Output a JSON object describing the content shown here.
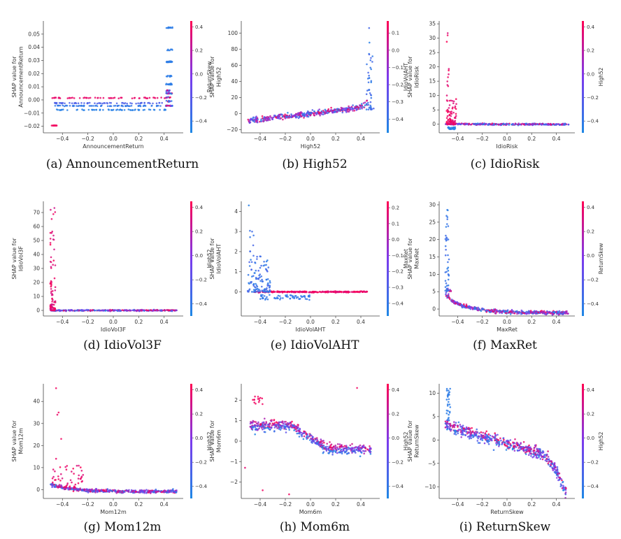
{
  "colors": {
    "low": "#1e88e5",
    "mid": "#7c3aed",
    "high": "#ff0052"
  },
  "chart_data": [
    {
      "type": "scatter",
      "caption": "(a) AnnouncementReturn",
      "xlabel": "AnnouncementReturn",
      "ylabel": "SHAP value for\nAnnouncementReturn",
      "xlim": [
        -0.55,
        0.55
      ],
      "ylim": [
        -0.025,
        0.06
      ],
      "xticks": [
        -0.4,
        -0.2,
        0.0,
        0.2,
        0.4
      ],
      "xticklabels": [
        "−0.4",
        "−0.2",
        "0.0",
        "0.2",
        "0.4"
      ],
      "yticks": [
        -0.02,
        -0.01,
        0.0,
        0.01,
        0.02,
        0.03,
        0.04,
        0.05
      ],
      "yticklabels": [
        "−0.02",
        "−0.01",
        "0.00",
        "0.01",
        "0.02",
        "0.03",
        "0.04",
        "0.05"
      ],
      "colorbar": {
        "label": "ReturnSkew",
        "ticks": [
          0.4,
          0.2,
          0.0,
          -0.2,
          -0.4
        ],
        "ticklabels": [
          "0.4",
          "0.2",
          "0.0",
          "−0.2",
          "−0.4"
        ],
        "range": [
          -0.5,
          0.45
        ]
      },
      "pattern": "step",
      "seed": 11
    },
    {
      "type": "scatter",
      "caption": "(b) High52",
      "xlabel": "High52",
      "ylabel": "SHAP value for\nHigh52",
      "xlim": [
        -0.55,
        0.55
      ],
      "ylim": [
        -24,
        115
      ],
      "xticks": [
        -0.4,
        -0.2,
        0.0,
        0.2,
        0.4
      ],
      "xticklabels": [
        "−0.4",
        "−0.2",
        "0.0",
        "0.2",
        "0.4"
      ],
      "yticks": [
        -20,
        0,
        20,
        40,
        60,
        80,
        100
      ],
      "yticklabels": [
        "−20",
        "0",
        "20",
        "40",
        "60",
        "80",
        "100"
      ],
      "colorbar": {
        "label": "IdioVolAHT",
        "ticks": [
          0.1,
          0.0,
          -0.1,
          -0.2,
          -0.3,
          -0.4
        ],
        "ticklabels": [
          "0.1",
          "0.0",
          "−0.1",
          "−0.2",
          "−0.3",
          "−0.4"
        ],
        "range": [
          -0.48,
          0.17
        ]
      },
      "pattern": "high52",
      "seed": 23
    },
    {
      "type": "scatter",
      "caption": "(c) IdioRisk",
      "xlabel": "IdioRisk",
      "ylabel": "SHAP value for\nIdioRisk",
      "xlim": [
        -0.55,
        0.55
      ],
      "ylim": [
        -3,
        36
      ],
      "xticks": [
        -0.4,
        -0.2,
        0.0,
        0.2,
        0.4
      ],
      "xticklabels": [
        "−0.4",
        "−0.2",
        "0.0",
        "0.2",
        "0.4"
      ],
      "yticks": [
        0,
        5,
        10,
        15,
        20,
        25,
        30,
        35
      ],
      "yticklabels": [
        "0",
        "5",
        "10",
        "15",
        "20",
        "25",
        "30",
        "35"
      ],
      "colorbar": {
        "label": "High52",
        "ticks": [
          0.4,
          0.2,
          0.0,
          -0.2,
          -0.4
        ],
        "ticklabels": [
          "0.4",
          "0.2",
          "0.0",
          "−0.2",
          "−0.4"
        ],
        "range": [
          -0.5,
          0.45
        ]
      },
      "pattern": "spike",
      "seed": 37
    },
    {
      "type": "scatter",
      "caption": "(d) IdioVol3F",
      "xlabel": "IdioVol3F",
      "ylabel": "SHAP value for\nIdioVol3F",
      "xlim": [
        -0.55,
        0.55
      ],
      "ylim": [
        -4,
        78
      ],
      "xticks": [
        -0.4,
        -0.2,
        0.0,
        0.2,
        0.4
      ],
      "xticklabels": [
        "−0.4",
        "−0.2",
        "0.0",
        "0.2",
        "0.4"
      ],
      "yticks": [
        0,
        10,
        20,
        30,
        40,
        50,
        60,
        70
      ],
      "yticklabels": [
        "0",
        "10",
        "20",
        "30",
        "40",
        "50",
        "60",
        "70"
      ],
      "colorbar": {
        "label": "High52",
        "ticks": [
          0.4,
          0.2,
          0.0,
          -0.2,
          -0.4
        ],
        "ticklabels": [
          "0.4",
          "0.2",
          "0.0",
          "−0.2",
          "−0.4"
        ],
        "range": [
          -0.5,
          0.45
        ]
      },
      "pattern": "spike2",
      "seed": 41
    },
    {
      "type": "scatter",
      "caption": "(e) IdioVolAHT",
      "xlabel": "IdioVolAHT",
      "ylabel": "SHAP value for\nIdioVolAHT",
      "xlim": [
        -0.55,
        0.55
      ],
      "ylim": [
        -1.2,
        4.5
      ],
      "xticks": [
        -0.4,
        -0.2,
        0.0,
        0.2,
        0.4
      ],
      "xticklabels": [
        "−0.4",
        "−0.2",
        "0.0",
        "0.2",
        "0.4"
      ],
      "yticks": [
        0,
        1,
        2,
        3,
        4
      ],
      "yticklabels": [
        "0",
        "1",
        "2",
        "3",
        "4"
      ],
      "colorbar": {
        "label": "MaxRet",
        "ticks": [
          0.2,
          0.1,
          0.0,
          -0.1,
          -0.2,
          -0.3,
          -0.4
        ],
        "ticklabels": [
          "0.2",
          "0.1",
          "0.0",
          "−0.1",
          "−0.2",
          "−0.3",
          "−0.4"
        ],
        "range": [
          -0.48,
          0.24
        ]
      },
      "pattern": "volaht",
      "seed": 53
    },
    {
      "type": "scatter",
      "caption": "(f) MaxRet",
      "xlabel": "MaxRet",
      "ylabel": "SHAP value for\nMaxRet",
      "xlim": [
        -0.55,
        0.55
      ],
      "ylim": [
        -2,
        31
      ],
      "xticks": [
        -0.4,
        -0.2,
        0.0,
        0.2,
        0.4
      ],
      "xticklabels": [
        "−0.4",
        "−0.2",
        "0.0",
        "0.2",
        "0.4"
      ],
      "yticks": [
        0,
        5,
        10,
        15,
        20,
        25,
        30
      ],
      "yticklabels": [
        "0",
        "5",
        "10",
        "15",
        "20",
        "25",
        "30"
      ],
      "colorbar": {
        "label": "ReturnSkew",
        "ticks": [
          0.4,
          0.2,
          0.0,
          -0.2,
          -0.4
        ],
        "ticklabels": [
          "0.4",
          "0.2",
          "0.0",
          "−0.2",
          "−0.4"
        ],
        "range": [
          -0.5,
          0.45
        ]
      },
      "pattern": "decay",
      "seed": 67
    },
    {
      "type": "scatter",
      "caption": "(g) Mom12m",
      "xlabel": "Mom12m",
      "ylabel": "SHAP value for\nMom12m",
      "xlim": [
        -0.55,
        0.55
      ],
      "ylim": [
        -4,
        48
      ],
      "xticks": [
        -0.4,
        -0.2,
        0.0,
        0.2,
        0.4
      ],
      "xticklabels": [
        "−0.4",
        "−0.2",
        "0.0",
        "0.2",
        "0.4"
      ],
      "yticks": [
        0,
        10,
        20,
        30,
        40
      ],
      "yticklabels": [
        "0",
        "10",
        "20",
        "30",
        "40"
      ],
      "colorbar": {
        "label": "High52",
        "ticks": [
          0.4,
          0.2,
          0.0,
          -0.2,
          -0.4
        ],
        "ticklabels": [
          "0.4",
          "0.2",
          "0.0",
          "−0.2",
          "−0.4"
        ],
        "range": [
          -0.5,
          0.45
        ]
      },
      "pattern": "mom12",
      "seed": 79
    },
    {
      "type": "scatter",
      "caption": "(h) Mom6m",
      "xlabel": "Mom6m",
      "ylabel": "SHAP value for\nMom6m",
      "xlim": [
        -0.55,
        0.55
      ],
      "ylim": [
        -2.8,
        2.8
      ],
      "xticks": [
        -0.4,
        -0.2,
        0.0,
        0.2,
        0.4
      ],
      "xticklabels": [
        "−0.4",
        "−0.2",
        "0.0",
        "0.2",
        "0.4"
      ],
      "yticks": [
        -2,
        -1,
        0,
        1,
        2
      ],
      "yticklabels": [
        "−2",
        "−1",
        "0",
        "1",
        "2"
      ],
      "colorbar": {
        "label": "High52",
        "ticks": [
          0.4,
          0.2,
          0.0,
          -0.2,
          -0.4
        ],
        "ticklabels": [
          "0.4",
          "0.2",
          "0.0",
          "−0.2",
          "−0.4"
        ],
        "range": [
          -0.5,
          0.45
        ]
      },
      "pattern": "mom6",
      "seed": 83
    },
    {
      "type": "scatter",
      "caption": "(i) ReturnSkew",
      "xlabel": "ReturnSkew",
      "ylabel": "SHAP value for\nReturnSkew",
      "xlim": [
        -0.55,
        0.55
      ],
      "ylim": [
        -12.5,
        12
      ],
      "xticks": [
        -0.4,
        -0.2,
        0.0,
        0.2,
        0.4
      ],
      "xticklabels": [
        "−0.4",
        "−0.2",
        "0.0",
        "0.2",
        "0.4"
      ],
      "yticks": [
        -10,
        -5,
        0,
        5,
        10
      ],
      "yticklabels": [
        "−10",
        "−5",
        "0",
        "5",
        "10"
      ],
      "colorbar": {
        "label": "High52",
        "ticks": [
          0.4,
          0.2,
          0.0,
          -0.2,
          -0.4
        ],
        "ticklabels": [
          "0.4",
          "0.2",
          "0.0",
          "−0.2",
          "−0.4"
        ],
        "range": [
          -0.5,
          0.45
        ]
      },
      "pattern": "skew",
      "seed": 97
    }
  ]
}
